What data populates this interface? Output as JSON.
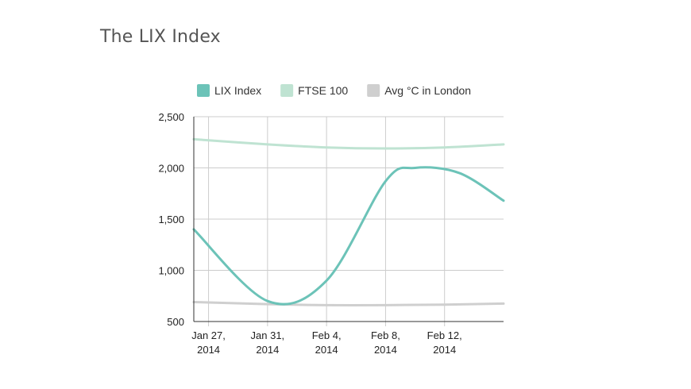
{
  "page": {
    "title": "The LIX Index"
  },
  "chart_data": {
    "type": "line",
    "title": "The LIX Index",
    "xlabel": "",
    "ylabel": "",
    "x_tick_labels": [
      [
        "Jan 27,",
        "2014"
      ],
      [
        "Jan 31,",
        "2014"
      ],
      [
        "Feb 4,",
        "2014"
      ],
      [
        "Feb 8,",
        "2014"
      ],
      [
        "Feb 12,",
        "2014"
      ]
    ],
    "x_tick_dates": [
      "2014-01-27",
      "2014-01-31",
      "2014-02-04",
      "2014-02-08",
      "2014-02-12"
    ],
    "xlim": [
      "2014-01-26",
      "2014-02-16"
    ],
    "ylim": [
      500,
      2500
    ],
    "y_ticks": [
      500,
      1000,
      1500,
      2000,
      2500
    ],
    "y_tick_labels": [
      "500",
      "1,000",
      "1,500",
      "2,000",
      "2,500"
    ],
    "grid": true,
    "legend_position": "top",
    "series": [
      {
        "name": "LIX Index",
        "color": "#6cc3b8",
        "x": [
          "2014-01-26",
          "2014-01-31",
          "2014-02-04",
          "2014-02-08",
          "2014-02-10",
          "2014-02-13",
          "2014-02-16"
        ],
        "y": [
          1400,
          700,
          900,
          1870,
          2000,
          1950,
          1680
        ]
      },
      {
        "name": "FTSE 100",
        "color": "#bfe3d2",
        "x": [
          "2014-01-26",
          "2014-01-31",
          "2014-02-04",
          "2014-02-08",
          "2014-02-12",
          "2014-02-16"
        ],
        "y": [
          2280,
          2230,
          2200,
          2190,
          2200,
          2230
        ]
      },
      {
        "name": "Avg °C in London",
        "color": "#cfcfcf",
        "x": [
          "2014-01-26",
          "2014-01-31",
          "2014-02-04",
          "2014-02-08",
          "2014-02-12",
          "2014-02-16"
        ],
        "y": [
          690,
          670,
          660,
          660,
          665,
          675
        ]
      }
    ]
  }
}
